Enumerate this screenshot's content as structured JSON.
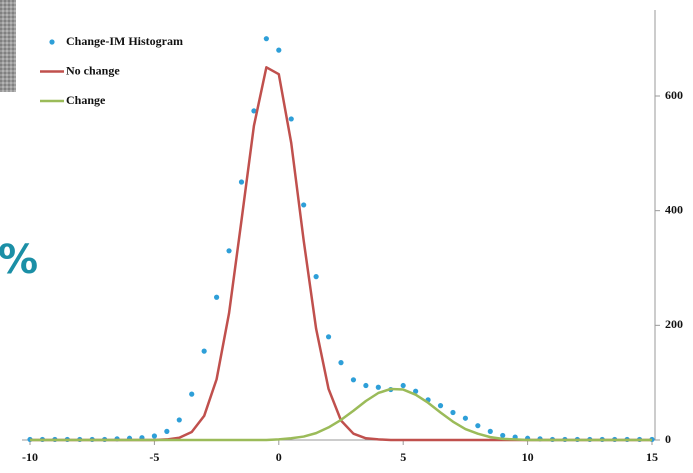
{
  "chart_data": {
    "type": "scatter",
    "overlay_text": "%",
    "x": [
      -10,
      -9.5,
      -9,
      -8.5,
      -8,
      -7.5,
      -7,
      -6.5,
      -6,
      -5.5,
      -5,
      -4.5,
      -4,
      -3.5,
      -3,
      -2.5,
      -2,
      -1.5,
      -1,
      -0.5,
      0,
      0.5,
      1,
      1.5,
      2,
      2.5,
      3,
      3.5,
      4,
      4.5,
      5,
      5.5,
      6,
      6.5,
      7,
      7.5,
      8,
      8.5,
      9,
      9.5,
      10,
      10.5,
      11,
      11.5,
      12,
      12.5,
      13,
      13.5,
      14,
      14.5,
      15
    ],
    "series": [
      {
        "name": "Change-IM Histogram",
        "style": "markers",
        "color": "#2e9fd8",
        "values": [
          1,
          1,
          1,
          1,
          1,
          1,
          1,
          2,
          3,
          4,
          7,
          15,
          35,
          80,
          155,
          249,
          330,
          450,
          574,
          700,
          680,
          560,
          410,
          285,
          180,
          135,
          105,
          95,
          92,
          88,
          95,
          85,
          70,
          60,
          48,
          38,
          25,
          15,
          8,
          5,
          3,
          2,
          1,
          1,
          1,
          1,
          1,
          1,
          1,
          1,
          1
        ]
      },
      {
        "name": "No change",
        "style": "line",
        "color": "#c0504d",
        "values": [
          0,
          0,
          0,
          0,
          0,
          0,
          0,
          0,
          0,
          0,
          0,
          1,
          4,
          14,
          42,
          106,
          221,
          383,
          548,
          650,
          638,
          518,
          348,
          194,
          89,
          34,
          11,
          3,
          1,
          0,
          0,
          0,
          0,
          0,
          0,
          0,
          0,
          0,
          0,
          0,
          0,
          0,
          0,
          0,
          0,
          0,
          0,
          0,
          0,
          0,
          0
        ]
      },
      {
        "name": "Change",
        "style": "line",
        "color": "#9bbb59",
        "values": [
          0,
          0,
          0,
          0,
          0,
          0,
          0,
          0,
          0,
          0,
          0,
          0,
          0,
          0,
          0,
          0,
          0,
          0,
          0,
          0,
          1,
          3,
          6,
          12,
          22,
          35,
          51,
          68,
          82,
          89,
          88,
          79,
          65,
          48,
          32,
          19,
          11,
          5,
          2,
          1,
          0,
          0,
          0,
          0,
          0,
          0,
          0,
          0,
          0,
          0,
          0
        ]
      }
    ],
    "xlim": [
      -10,
      15
    ],
    "xticks": [
      -10,
      -5,
      0,
      5,
      10,
      15
    ],
    "ylim": [
      0,
      750
    ],
    "yticks": [
      0,
      200,
      400,
      600
    ],
    "legend": "upper-left"
  }
}
